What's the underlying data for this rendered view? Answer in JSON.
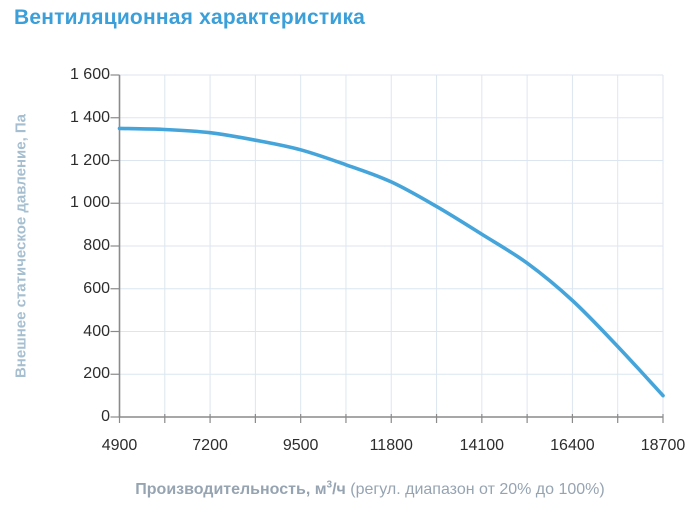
{
  "page": {
    "title": "Вентиляционная характеристика"
  },
  "chart_data": {
    "type": "line",
    "title": "Вентиляционная характеристика",
    "ylabel": "Внешнее статическое давление, Па",
    "xlabel_bold": "Производительность",
    "xlabel_unit_base": ", м",
    "xlabel_unit_sup": "3",
    "xlabel_unit_rest": "/ч",
    "xlabel_note": " (регул. диапазон от 20% до 100%)",
    "xlim": [
      4900,
      18700
    ],
    "ylim": [
      0,
      1600
    ],
    "x_ticks": [
      4900,
      7200,
      9500,
      11800,
      14100,
      16400,
      18700
    ],
    "x_tick_labels": [
      "4900",
      "7200",
      "9500",
      "11800",
      "14100",
      "16400",
      "18700"
    ],
    "x_minor_interval": 1150,
    "y_ticks": [
      0,
      200,
      400,
      600,
      800,
      1000,
      1200,
      1400,
      1600
    ],
    "y_tick_labels": [
      "0",
      "200",
      "400",
      "600",
      "800",
      "1 000",
      "1 200",
      "1 400",
      "1 600"
    ],
    "grid": true,
    "legend": "none",
    "series": [
      {
        "name": "fan-pressure-curve",
        "color": "#45A5DB",
        "x": [
          4900,
          6050,
          7200,
          8350,
          9500,
          10650,
          11800,
          12950,
          14100,
          15250,
          16400,
          17550,
          18700
        ],
        "y": [
          1350,
          1345,
          1330,
          1295,
          1250,
          1180,
          1100,
          985,
          855,
          720,
          545,
          330,
          100
        ]
      }
    ]
  },
  "colors": {
    "title": "#3B9FD9",
    "curve": "#45A5DB",
    "ylabel": "#A6BFD0",
    "xlabel": "#96A4B2",
    "tick_text": "#2D2D2D",
    "axis": "#8A8A8A",
    "grid": "#DCE6F0"
  }
}
